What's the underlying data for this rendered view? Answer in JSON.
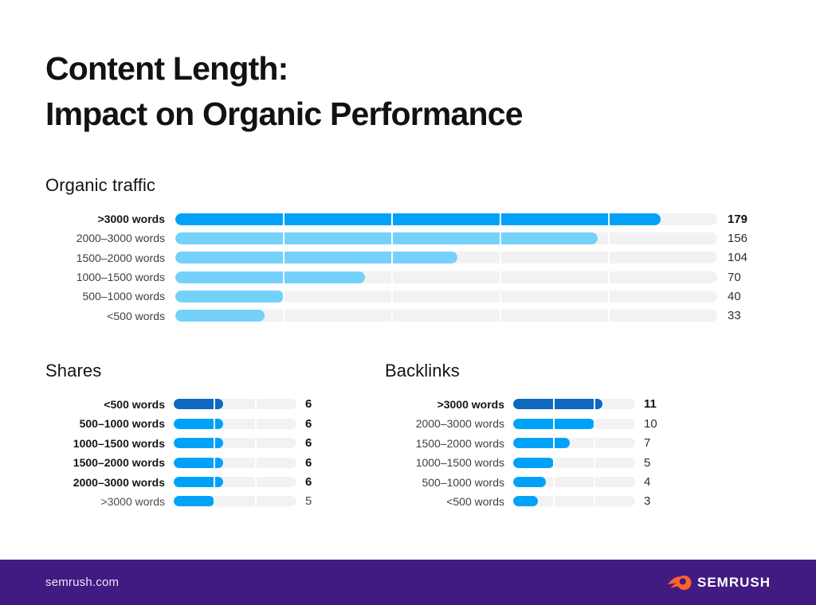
{
  "title": {
    "line1": "Content Length:",
    "line2": "Impact on Organic Performance"
  },
  "footer": {
    "site": "semrush.com",
    "brand": "SEMRUSH"
  },
  "colors": {
    "bright_blue": "#00A2F8",
    "light_blue": "#74D1FA",
    "dark_blue": "#0E69BE",
    "track_gray": "#F2F2F2",
    "footer_purple": "#411B82",
    "flame_orange": "#FF642D",
    "title_black": "#121212"
  },
  "chart_data": [
    {
      "id": "organic",
      "type": "bar",
      "orientation": "horizontal",
      "title": "Organic traffic",
      "categories": [
        ">3000 words",
        "2000–3000 words",
        "1500–2000 words",
        "1000–1500 words",
        "500–1000 words",
        "<500 words"
      ],
      "values": [
        179,
        156,
        104,
        70,
        40,
        33
      ],
      "xlim": [
        0,
        200
      ],
      "gridlines": [
        40,
        80,
        120,
        160
      ],
      "grid": true,
      "legend": false,
      "bar_colors": [
        "#00A2F8",
        "#74D1FA",
        "#74D1FA",
        "#74D1FA",
        "#74D1FA",
        "#74D1FA"
      ],
      "bold_rows": [
        0
      ],
      "muted_rows": []
    },
    {
      "id": "shares",
      "type": "bar",
      "orientation": "horizontal",
      "title": "Shares",
      "categories": [
        "<500 words",
        "500–1000 words",
        "1000–1500 words",
        "1500–2000 words",
        "2000–3000 words",
        ">3000 words"
      ],
      "values": [
        6,
        6,
        6,
        6,
        6,
        5
      ],
      "xlim": [
        0,
        15
      ],
      "gridlines": [
        5,
        10
      ],
      "grid": true,
      "legend": false,
      "bar_colors": [
        "#0E69BE",
        "#00A2F8",
        "#00A2F8",
        "#00A2F8",
        "#00A2F8",
        "#00A2F8"
      ],
      "bold_rows": [
        0,
        1,
        2,
        3,
        4
      ],
      "muted_rows": [
        5
      ]
    },
    {
      "id": "backlinks",
      "type": "bar",
      "orientation": "horizontal",
      "title": "Backlinks",
      "categories": [
        ">3000 words",
        "2000–3000 words",
        "1500–2000 words",
        "1000–1500 words",
        "500–1000 words",
        "<500 words"
      ],
      "values": [
        11,
        10,
        7,
        5,
        4,
        3
      ],
      "xlim": [
        0,
        15
      ],
      "gridlines": [
        5,
        10
      ],
      "grid": true,
      "legend": false,
      "bar_colors": [
        "#0E69BE",
        "#00A2F8",
        "#00A2F8",
        "#00A2F8",
        "#00A2F8",
        "#00A2F8"
      ],
      "bold_rows": [
        0
      ],
      "muted_rows": []
    }
  ]
}
